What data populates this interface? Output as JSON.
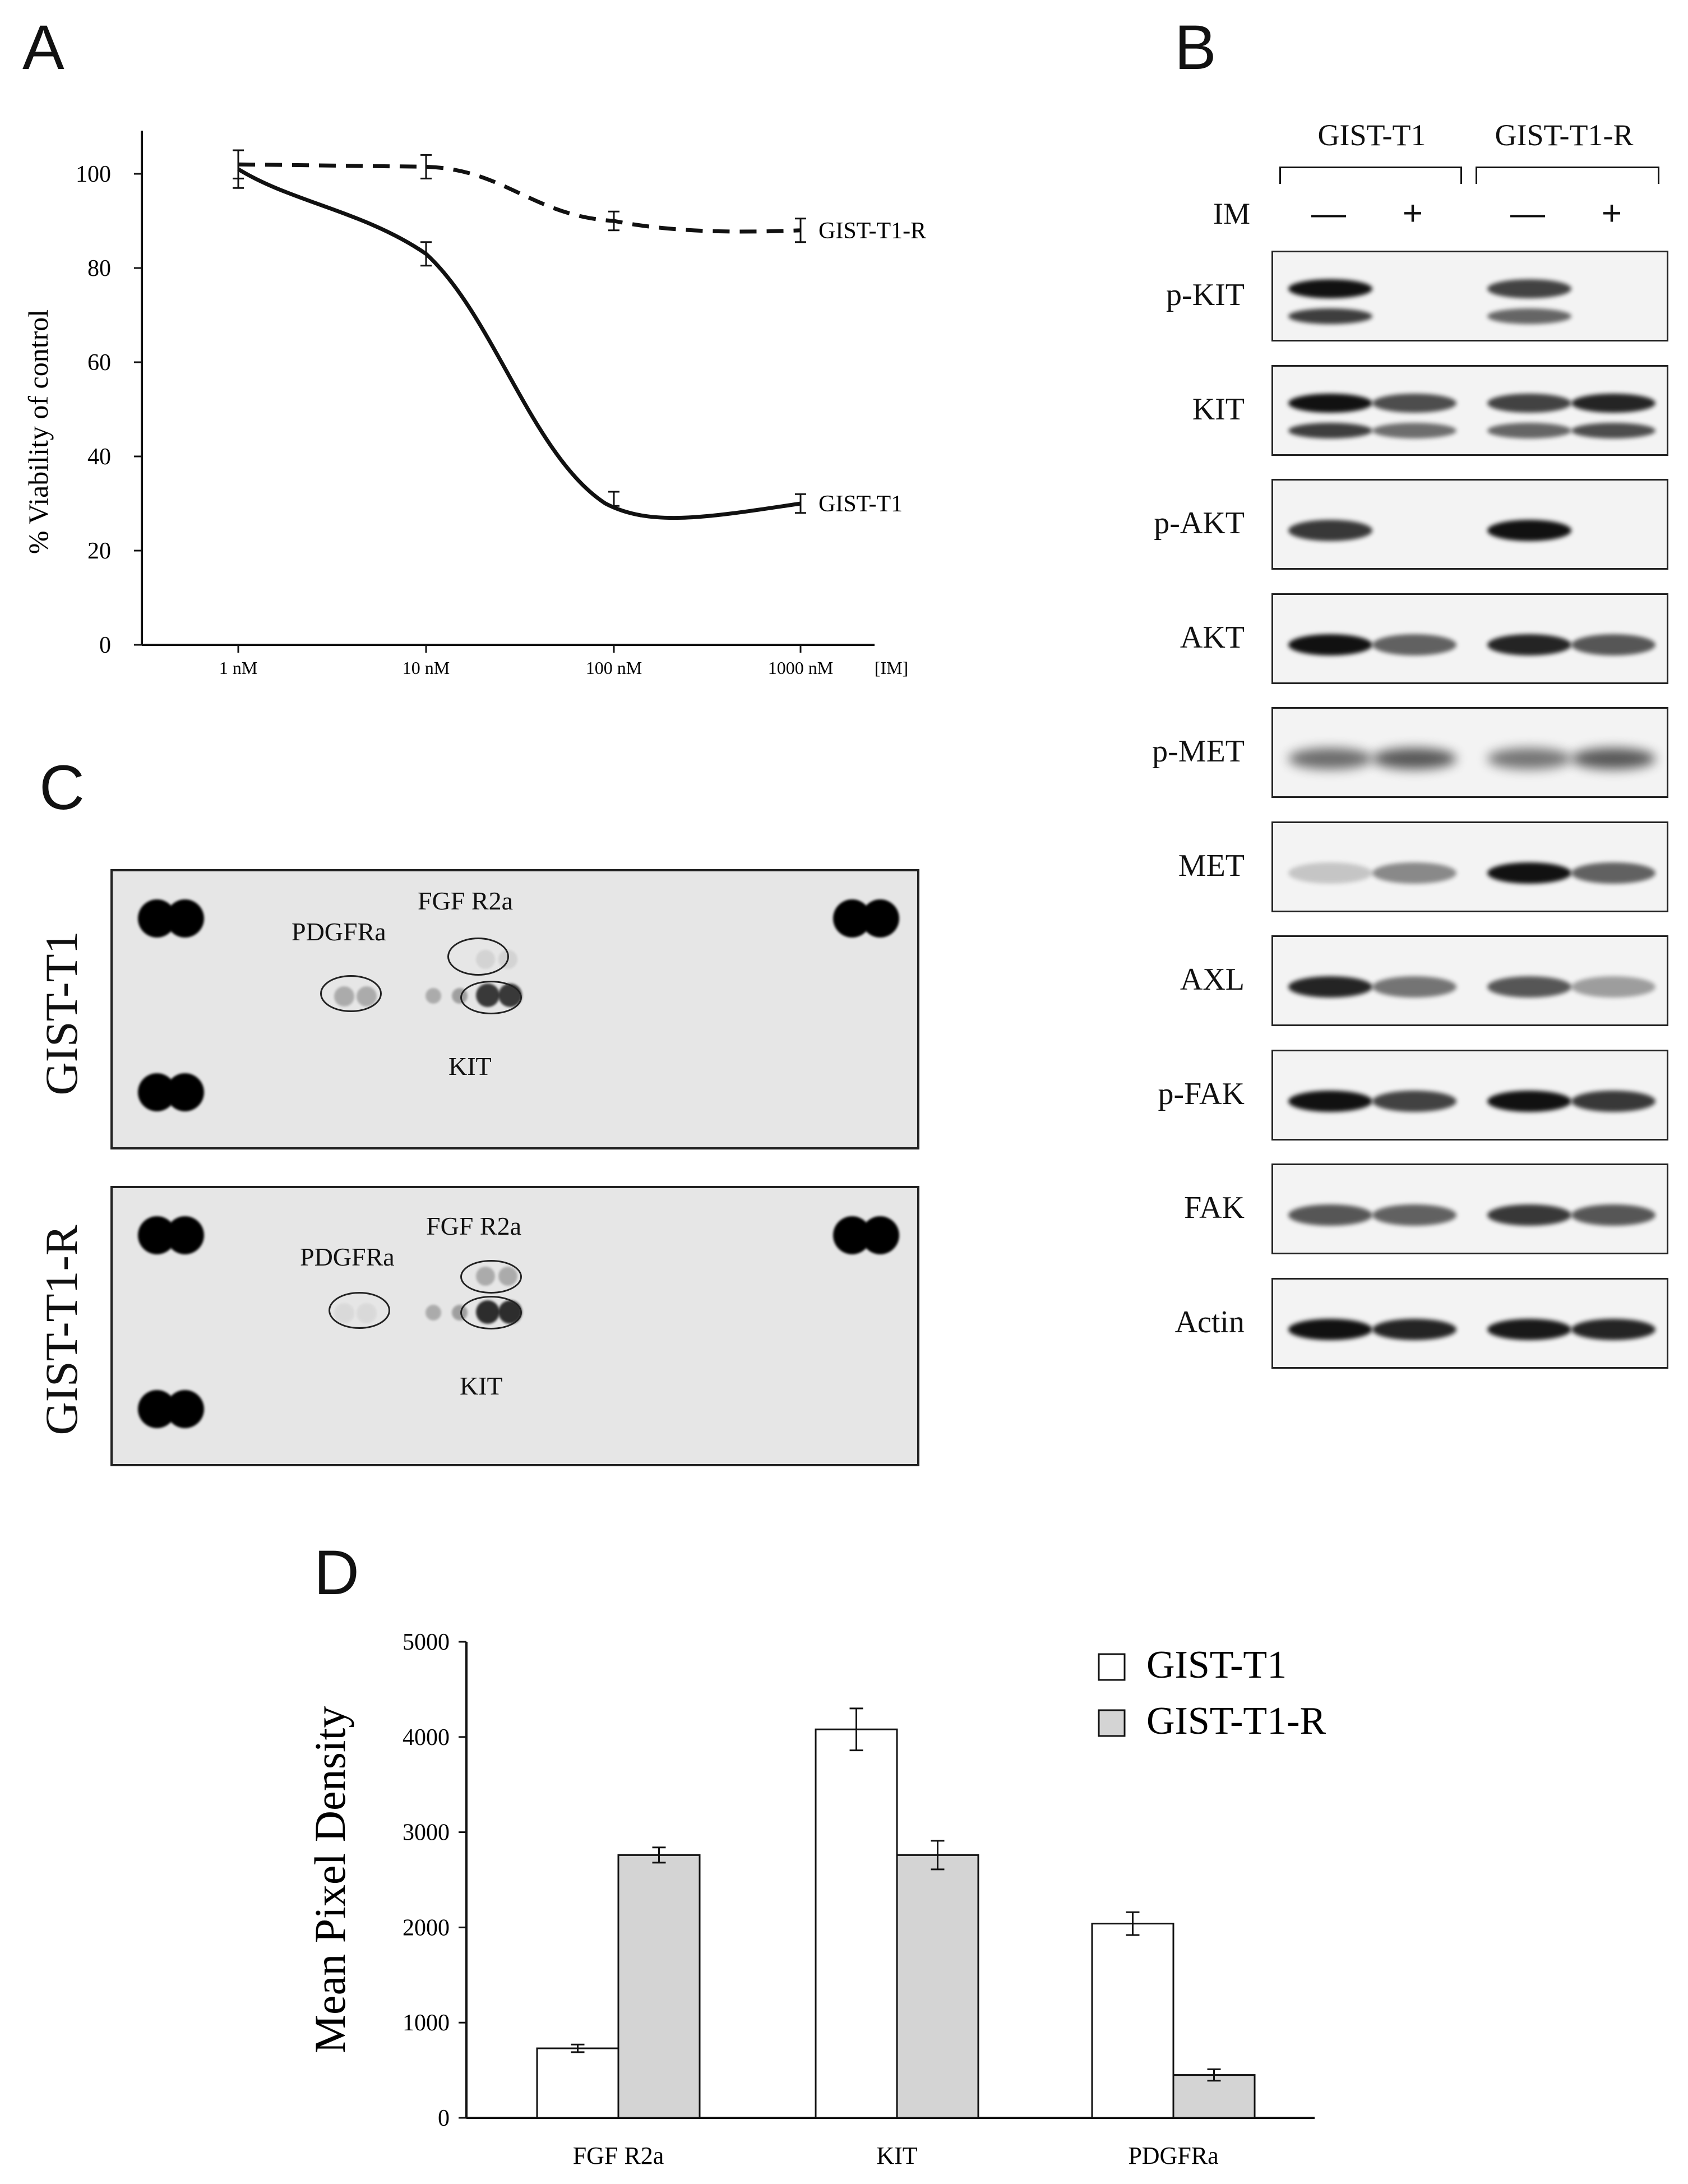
{
  "panels": {
    "a": "A",
    "b": "B",
    "c": "C",
    "d": "D"
  },
  "chart_data": [
    {
      "type": "line",
      "panel": "A",
      "ylabel": "% Viability of control",
      "xlabel": "[IM]",
      "categories": [
        "1 nM",
        "10 nM",
        "100 nM",
        "1000 nM"
      ],
      "x": [
        1,
        10,
        100,
        1000
      ],
      "xscale": "log",
      "ylim": [
        0,
        110
      ],
      "yticks": [
        0,
        20,
        40,
        60,
        80,
        100
      ],
      "series": [
        {
          "name": "GIST-T1",
          "values": [
            101,
            83,
            31,
            30
          ],
          "errors": [
            4,
            2.5,
            1.5,
            2
          ],
          "style": "solid"
        },
        {
          "name": "GIST-T1-R",
          "values": [
            102,
            101.5,
            90,
            88
          ],
          "errors": [
            3,
            2.5,
            2,
            2.5
          ],
          "style": "dashed"
        }
      ]
    },
    {
      "type": "bar",
      "panel": "D",
      "ylabel": "Mean Pixel Density",
      "categories": [
        "FGF R2a",
        "KIT",
        "PDGFRa"
      ],
      "ylim": [
        0,
        5000
      ],
      "yticks": [
        0,
        1000,
        2000,
        3000,
        4000,
        5000
      ],
      "legend": "top-right",
      "series": [
        {
          "name": "GIST-T1",
          "values": [
            730,
            4080,
            2040
          ],
          "errors": [
            40,
            220,
            120
          ],
          "color": "#ffffff"
        },
        {
          "name": "GIST-T1-R",
          "values": [
            2760,
            2760,
            450
          ],
          "errors": [
            80,
            150,
            60
          ],
          "color": "#d4d4d4"
        }
      ]
    }
  ],
  "western_blot": {
    "groups": [
      "GIST-T1",
      "GIST-T1-R"
    ],
    "treatment_label": "IM",
    "treatments": [
      "—",
      "+",
      "—",
      "+"
    ],
    "rows": [
      {
        "label": "p-KIT",
        "lanes": [
          1.0,
          0.0,
          0.7,
          0.0
        ],
        "double": true
      },
      {
        "label": "KIT",
        "lanes": [
          1.0,
          0.65,
          0.7,
          0.85
        ],
        "double": true
      },
      {
        "label": "p-AKT",
        "lanes": [
          0.75,
          0.0,
          0.95,
          0.0
        ],
        "double": false
      },
      {
        "label": "AKT",
        "lanes": [
          0.95,
          0.55,
          0.85,
          0.6
        ],
        "double": false
      },
      {
        "label": "p-MET",
        "lanes": [
          0.5,
          0.6,
          0.45,
          0.6
        ],
        "double": false
      },
      {
        "label": "MET",
        "lanes": [
          0.05,
          0.35,
          1.0,
          0.55
        ],
        "double": false
      },
      {
        "label": "AXL",
        "lanes": [
          0.85,
          0.45,
          0.6,
          0.25
        ],
        "double": false
      },
      {
        "label": "p-FAK",
        "lanes": [
          1.0,
          0.7,
          1.0,
          0.75
        ],
        "double": false
      },
      {
        "label": "FAK",
        "lanes": [
          0.6,
          0.55,
          0.75,
          0.6
        ],
        "double": false
      },
      {
        "label": "Actin",
        "lanes": [
          1.0,
          0.85,
          0.9,
          0.85
        ],
        "double": false
      }
    ]
  },
  "rtk_array": {
    "membranes": [
      {
        "name": "GIST-T1",
        "spots": {
          "PDGFRa": "PDGFRa",
          "FGFR2a": "FGF R2a",
          "KIT": "KIT"
        }
      },
      {
        "name": "GIST-T1-R",
        "spots": {
          "PDGFRa": "PDGFRa",
          "FGFR2a": "FGF R2a",
          "KIT": "KIT"
        }
      }
    ]
  }
}
